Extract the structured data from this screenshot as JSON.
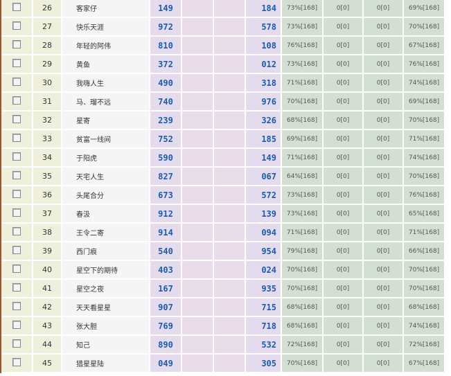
{
  "rows": [
    {
      "no": "26",
      "name": "客家仔",
      "a": "149",
      "b": "184",
      "p1": "73%[168]",
      "z1": "0[0]",
      "z2": "0[0]",
      "p2": "69%[168]"
    },
    {
      "no": "27",
      "name": "快乐天涯",
      "a": "972",
      "b": "578",
      "p1": "73%[168]",
      "z1": "0[0]",
      "z2": "0[0]",
      "p2": "70%[168]"
    },
    {
      "no": "28",
      "name": "年轻的阿伟",
      "a": "810",
      "b": "108",
      "p1": "76%[168]",
      "z1": "0[0]",
      "z2": "0[0]",
      "p2": "67%[168]"
    },
    {
      "no": "29",
      "name": "黄鱼",
      "a": "372",
      "b": "012",
      "p1": "73%[168]",
      "z1": "0[0]",
      "z2": "0[0]",
      "p2": "76%[168]"
    },
    {
      "no": "30",
      "name": "我嗨人生",
      "a": "490",
      "b": "318",
      "p1": "71%[168]",
      "z1": "0[0]",
      "z2": "0[0]",
      "p2": "74%[168]"
    },
    {
      "no": "31",
      "name": "马、瑠不远",
      "a": "740",
      "b": "976",
      "p1": "70%[168]",
      "z1": "0[0]",
      "z2": "0[0]",
      "p2": "69%[168]"
    },
    {
      "no": "32",
      "name": "星寄",
      "a": "239",
      "b": "326",
      "p1": "68%[168]",
      "z1": "0[0]",
      "z2": "0[0]",
      "p2": "70%[168]"
    },
    {
      "no": "33",
      "name": "贫富一线间",
      "a": "752",
      "b": "185",
      "p1": "69%[168]",
      "z1": "0[0]",
      "z2": "0[0]",
      "p2": "71%[168]"
    },
    {
      "no": "34",
      "name": "于阳虎",
      "a": "590",
      "b": "149",
      "p1": "71%[168]",
      "z1": "0[0]",
      "z2": "0[0]",
      "p2": "74%[168]"
    },
    {
      "no": "35",
      "name": "天宅人生",
      "a": "827",
      "b": "067",
      "p1": "64%[168]",
      "z1": "0[0]",
      "z2": "0[0]",
      "p2": "70%[168]"
    },
    {
      "no": "36",
      "name": "头尾合分",
      "a": "673",
      "b": "572",
      "p1": "73%[168]",
      "z1": "0[0]",
      "z2": "0[0]",
      "p2": "76%[168]"
    },
    {
      "no": "37",
      "name": "春汲",
      "a": "912",
      "b": "139",
      "p1": "73%[168]",
      "z1": "0[0]",
      "z2": "0[0]",
      "p2": "65%[168]"
    },
    {
      "no": "38",
      "name": "王令二寄",
      "a": "914",
      "b": "094",
      "p1": "71%[168]",
      "z1": "0[0]",
      "z2": "0[0]",
      "p2": "71%[168]"
    },
    {
      "no": "39",
      "name": "西门痕",
      "a": "540",
      "b": "954",
      "p1": "79%[168]",
      "z1": "0[0]",
      "z2": "0[0]",
      "p2": "66%[168]"
    },
    {
      "no": "40",
      "name": "星空下的期待",
      "a": "403",
      "b": "024",
      "p1": "70%[168]",
      "z1": "0[0]",
      "z2": "0[0]",
      "p2": "70%[168]"
    },
    {
      "no": "41",
      "name": "星空之夜",
      "a": "167",
      "b": "935",
      "p1": "70%[168]",
      "z1": "0[0]",
      "z2": "0[0]",
      "p2": "70%[168]"
    },
    {
      "no": "42",
      "name": "天天看星星",
      "a": "907",
      "b": "715",
      "p1": "68%[168]",
      "z1": "0[0]",
      "z2": "0[0]",
      "p2": "68%[168]"
    },
    {
      "no": "43",
      "name": "张大胆",
      "a": "769",
      "b": "718",
      "p1": "68%[168]",
      "z1": "0[0]",
      "z2": "0[0]",
      "p2": "74%[168]"
    },
    {
      "no": "44",
      "name": "知己",
      "a": "890",
      "b": "532",
      "p1": "72%[168]",
      "z1": "0[0]",
      "z2": "0[0]",
      "p2": "72%[168]"
    },
    {
      "no": "45",
      "name": "猎星星陆",
      "a": "049",
      "b": "305",
      "p1": "70%[168]",
      "z1": "0[0]",
      "z2": "0[0]",
      "p2": "67%[168]"
    }
  ]
}
